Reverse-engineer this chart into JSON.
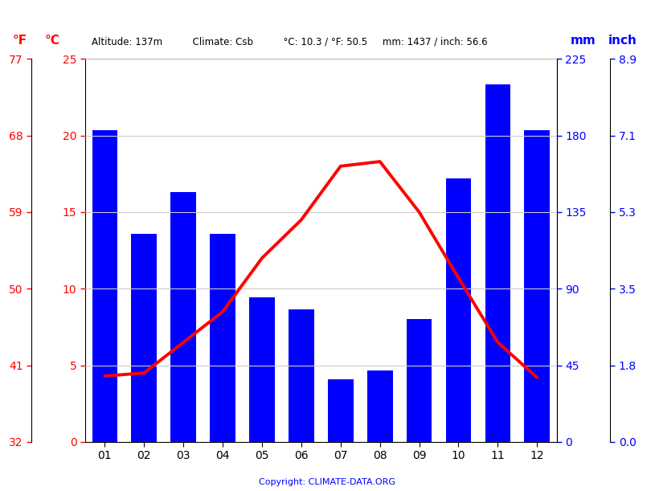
{
  "months": [
    "01",
    "02",
    "03",
    "04",
    "05",
    "06",
    "07",
    "08",
    "09",
    "10",
    "11",
    "12"
  ],
  "precipitation_mm": [
    183,
    122,
    147,
    122,
    85,
    78,
    37,
    42,
    72,
    155,
    210,
    183
  ],
  "temperature_c": [
    4.3,
    4.5,
    6.5,
    8.5,
    12.0,
    14.5,
    18.0,
    18.3,
    15.0,
    10.7,
    6.5,
    4.2
  ],
  "bar_color": "#0000ff",
  "line_color": "#ff0000",
  "left_yticks_c": [
    0,
    5,
    10,
    15,
    20,
    25
  ],
  "left_yticks_f": [
    32,
    41,
    50,
    59,
    68,
    77
  ],
  "right_yticks_mm": [
    0,
    45,
    90,
    135,
    180,
    225
  ],
  "right_yticks_inch": [
    "0.0",
    "1.8",
    "3.5",
    "5.3",
    "7.1",
    "8.9"
  ],
  "ylim_temp_c": [
    0,
    25
  ],
  "ylim_precip_mm": [
    0,
    225
  ],
  "header_text": "Altitude: 137m          Climate: Csb          °C: 10.3 / °F: 50.5     mm: 1437 / inch: 56.6",
  "copyright_text": "Copyright: CLIMATE-DATA.ORG",
  "label_f": "°F",
  "label_c": "°C",
  "label_mm": "mm",
  "label_inch": "inch",
  "background_color": "#ffffff",
  "grid_color": "#cccccc",
  "line_width": 2.8,
  "bar_width": 0.65
}
